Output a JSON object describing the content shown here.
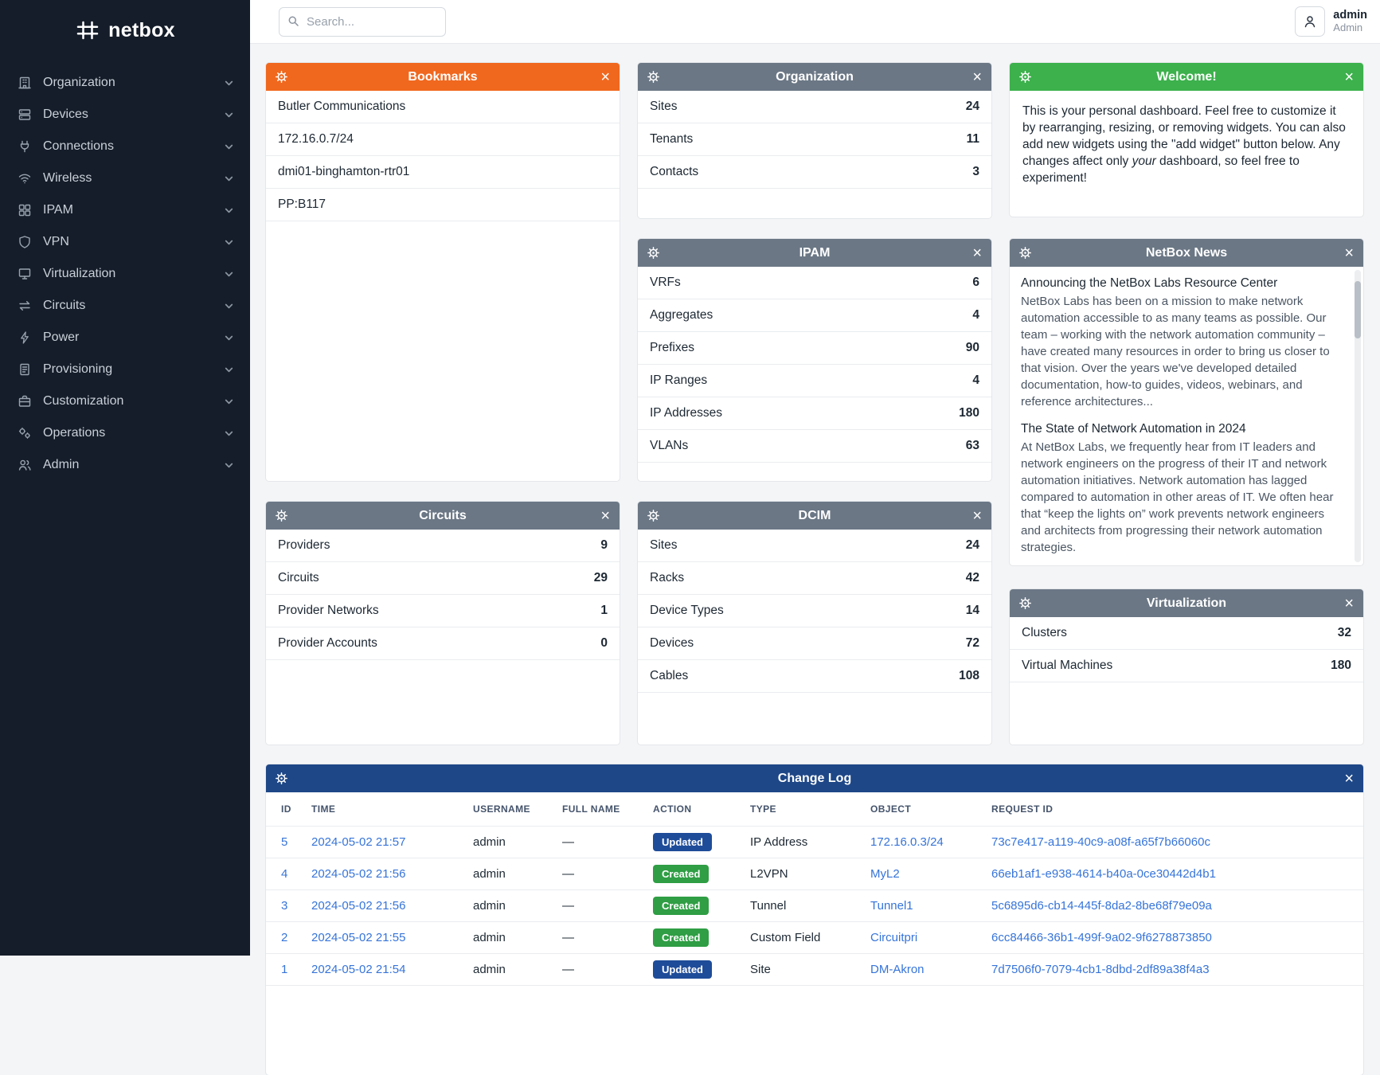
{
  "brand": {
    "name": "netbox"
  },
  "sidebar": {
    "items": [
      {
        "label": "Organization",
        "icon": "building-icon"
      },
      {
        "label": "Devices",
        "icon": "server-icon"
      },
      {
        "label": "Connections",
        "icon": "plug-icon"
      },
      {
        "label": "Wireless",
        "icon": "wifi-icon"
      },
      {
        "label": "IPAM",
        "icon": "grid-icon"
      },
      {
        "label": "VPN",
        "icon": "shield-icon"
      },
      {
        "label": "Virtualization",
        "icon": "monitor-icon"
      },
      {
        "label": "Circuits",
        "icon": "transfer-icon"
      },
      {
        "label": "Power",
        "icon": "bolt-icon"
      },
      {
        "label": "Provisioning",
        "icon": "document-icon"
      },
      {
        "label": "Customization",
        "icon": "briefcase-icon"
      },
      {
        "label": "Operations",
        "icon": "gears-icon"
      },
      {
        "label": "Admin",
        "icon": "users-icon"
      }
    ]
  },
  "topbar": {
    "search_placeholder": "Search...",
    "user": {
      "name": "admin",
      "role": "Admin"
    }
  },
  "widgets": {
    "bookmarks": {
      "title": "Bookmarks",
      "items": [
        "Butler Communications",
        "172.16.0.7/24",
        "dmi01-binghamton-rtr01",
        "PP:B117"
      ]
    },
    "organization": {
      "title": "Organization",
      "stats": [
        {
          "label": "Sites",
          "value": "24"
        },
        {
          "label": "Tenants",
          "value": "11"
        },
        {
          "label": "Contacts",
          "value": "3"
        }
      ]
    },
    "welcome": {
      "title": "Welcome!",
      "text_before": "This is your personal dashboard. Feel free to customize it by rearranging, resizing, or removing widgets. You can also add new widgets using the \"add widget\" button below. Any changes affect only ",
      "text_italic": "your",
      "text_after": " dashboard, so feel free to experiment!"
    },
    "ipam": {
      "title": "IPAM",
      "stats": [
        {
          "label": "VRFs",
          "value": "6"
        },
        {
          "label": "Aggregates",
          "value": "4"
        },
        {
          "label": "Prefixes",
          "value": "90"
        },
        {
          "label": "IP Ranges",
          "value": "4"
        },
        {
          "label": "IP Addresses",
          "value": "180"
        },
        {
          "label": "VLANs",
          "value": "63"
        }
      ]
    },
    "news": {
      "title": "NetBox News",
      "articles": [
        {
          "title": "Announcing the NetBox Labs Resource Center",
          "body": "NetBox Labs has been on a mission to make network automation accessible to as many teams as possible. Our team – working with the network automation community – have created many resources in order to bring us closer to that vision. Over the years we've developed detailed documentation, how-to guides, videos, webinars, and reference architectures..."
        },
        {
          "title": "The State of Network Automation in 2024",
          "body": "At NetBox Labs, we frequently hear from IT leaders and network engineers on the progress of their IT and network automation initiatives. Network automation has lagged compared to automation in other areas of IT. We often hear that “keep the lights on” work prevents network engineers and architects from progressing their network automation strategies."
        }
      ]
    },
    "circuits": {
      "title": "Circuits",
      "stats": [
        {
          "label": "Providers",
          "value": "9"
        },
        {
          "label": "Circuits",
          "value": "29"
        },
        {
          "label": "Provider Networks",
          "value": "1"
        },
        {
          "label": "Provider Accounts",
          "value": "0"
        }
      ]
    },
    "dcim": {
      "title": "DCIM",
      "stats": [
        {
          "label": "Sites",
          "value": "24"
        },
        {
          "label": "Racks",
          "value": "42"
        },
        {
          "label": "Device Types",
          "value": "14"
        },
        {
          "label": "Devices",
          "value": "72"
        },
        {
          "label": "Cables",
          "value": "108"
        }
      ]
    },
    "virtualization": {
      "title": "Virtualization",
      "stats": [
        {
          "label": "Clusters",
          "value": "32"
        },
        {
          "label": "Virtual Machines",
          "value": "180"
        }
      ]
    },
    "changelog": {
      "title": "Change Log",
      "columns": [
        "ID",
        "TIME",
        "USERNAME",
        "FULL NAME",
        "ACTION",
        "TYPE",
        "OBJECT",
        "REQUEST ID"
      ],
      "rows": [
        {
          "id": "5",
          "time": "2024-05-02 21:57",
          "username": "admin",
          "full_name": "—",
          "action": "Updated",
          "type": "IP Address",
          "object": "172.16.0.3/24",
          "request_id": "73c7e417-a119-40c9-a08f-a65f7b66060c"
        },
        {
          "id": "4",
          "time": "2024-05-02 21:56",
          "username": "admin",
          "full_name": "—",
          "action": "Created",
          "type": "L2VPN",
          "object": "MyL2",
          "request_id": "66eb1af1-e938-4614-b40a-0ce30442d4b1"
        },
        {
          "id": "3",
          "time": "2024-05-02 21:56",
          "username": "admin",
          "full_name": "—",
          "action": "Created",
          "type": "Tunnel",
          "object": "Tunnel1",
          "request_id": "5c6895d6-cb14-445f-8da2-8be68f79e09a"
        },
        {
          "id": "2",
          "time": "2024-05-02 21:55",
          "username": "admin",
          "full_name": "—",
          "action": "Created",
          "type": "Custom Field",
          "object": "Circuitpri",
          "request_id": "6cc84466-36b1-499f-9a02-9f6278873850"
        },
        {
          "id": "1",
          "time": "2024-05-02 21:54",
          "username": "admin",
          "full_name": "—",
          "action": "Updated",
          "type": "Site",
          "object": "DM-Akron",
          "request_id": "7d7506f0-7079-4cb1-8dbd-2df89a38f4a3"
        }
      ]
    }
  },
  "colors": {
    "sidebar_bg": "#151d2a",
    "header_slate": "#6b7785",
    "header_orange": "#f0681e",
    "header_green": "#3cb14c",
    "header_blue": "#1e4787",
    "badge_updated": "#1f4c99",
    "badge_created": "#2f9e44",
    "link": "#3674d9"
  }
}
